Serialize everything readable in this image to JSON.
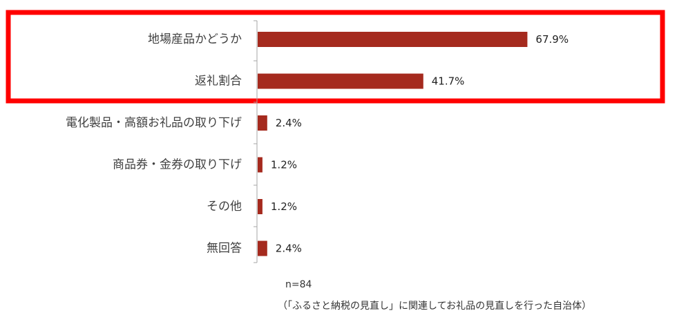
{
  "chart_data": {
    "type": "bar",
    "orientation": "horizontal",
    "categories": [
      "地場産品かどうか",
      "返礼割合",
      "電化製品・高額お礼品の取り下げ",
      "商品券・金券の取り下げ",
      "その他",
      "無回答"
    ],
    "values": [
      67.9,
      41.7,
      2.4,
      1.2,
      1.2,
      2.4
    ],
    "value_labels": [
      "67.9%",
      "41.7%",
      "2.4%",
      "1.2%",
      "1.2%",
      "2.4%"
    ],
    "unit": "%",
    "xlim": [
      0,
      100
    ],
    "highlight": {
      "categories": [
        "地場産品かどうか",
        "返礼割合"
      ],
      "color": "#ff0000"
    },
    "bar_color": "#a52a1e",
    "grid": false,
    "legend": "none"
  },
  "notes": {
    "n": "n=84",
    "caption": "（「ふるさと納税の見直し」に関連してお礼品の見直しを行った自治体）"
  }
}
